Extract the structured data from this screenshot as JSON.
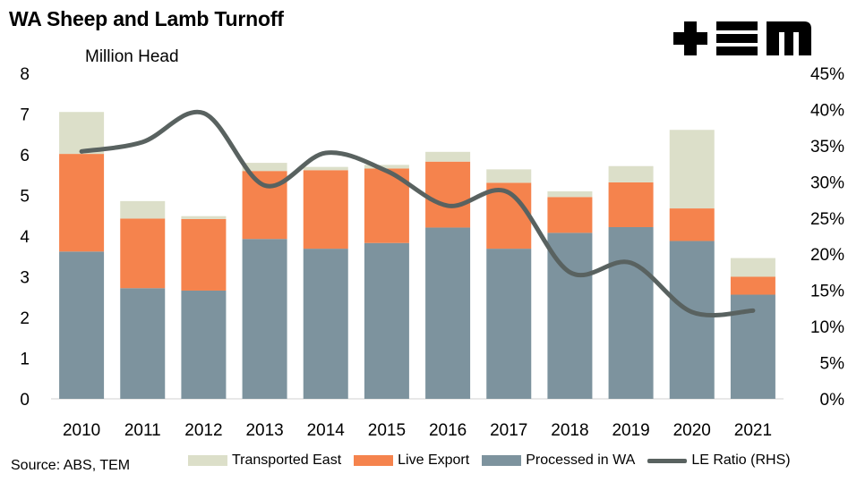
{
  "title": "WA Sheep and Lamb Turnoff",
  "source": "Source: ABS, TEM",
  "logo_text": "TEM",
  "colors": {
    "transported_east": "#dcdfc9",
    "live_export": "#f5834d",
    "processed_wa": "#7d939e",
    "le_ratio": "#596260"
  },
  "chart_data": {
    "type": "bar",
    "stacked": true,
    "title": "WA Sheep and Lamb Turnoff",
    "ylabel": "Million Head",
    "y2label": "LE Ratio (RHS)",
    "categories": [
      "2010",
      "2011",
      "2012",
      "2013",
      "2014",
      "2015",
      "2016",
      "2017",
      "2018",
      "2019",
      "2020",
      "2021"
    ],
    "ylim": [
      0,
      8
    ],
    "y_ticks": [
      "0",
      "1",
      "2",
      "3",
      "4",
      "5",
      "6",
      "7",
      "8"
    ],
    "y2lim": [
      0,
      45
    ],
    "y2_ticks": [
      "0%",
      "5%",
      "10%",
      "15%",
      "20%",
      "25%",
      "30%",
      "35%",
      "40%",
      "45%"
    ],
    "series": [
      {
        "name": "Processed in WA",
        "type": "bar",
        "values": [
          3.62,
          2.72,
          2.66,
          3.93,
          3.69,
          3.83,
          4.21,
          3.69,
          4.08,
          4.22,
          3.88,
          2.56
        ]
      },
      {
        "name": "Live Export",
        "type": "bar",
        "values": [
          2.4,
          1.71,
          1.76,
          1.67,
          1.93,
          1.83,
          1.62,
          1.62,
          0.88,
          1.1,
          0.8,
          0.44
        ]
      },
      {
        "name": "Transported East",
        "type": "bar",
        "values": [
          1.03,
          0.43,
          0.07,
          0.2,
          0.08,
          0.09,
          0.24,
          0.33,
          0.14,
          0.4,
          1.93,
          0.46
        ]
      },
      {
        "name": "LE Ratio (RHS)",
        "type": "line",
        "axis": "right",
        "values": [
          34.2,
          35.5,
          39.5,
          29.5,
          34.0,
          31.5,
          26.7,
          28.5,
          17.5,
          18.8,
          12.0,
          12.2
        ]
      }
    ],
    "legend": [
      "Transported East",
      "Live Export",
      "Processed in WA",
      "LE Ratio (RHS)"
    ]
  }
}
